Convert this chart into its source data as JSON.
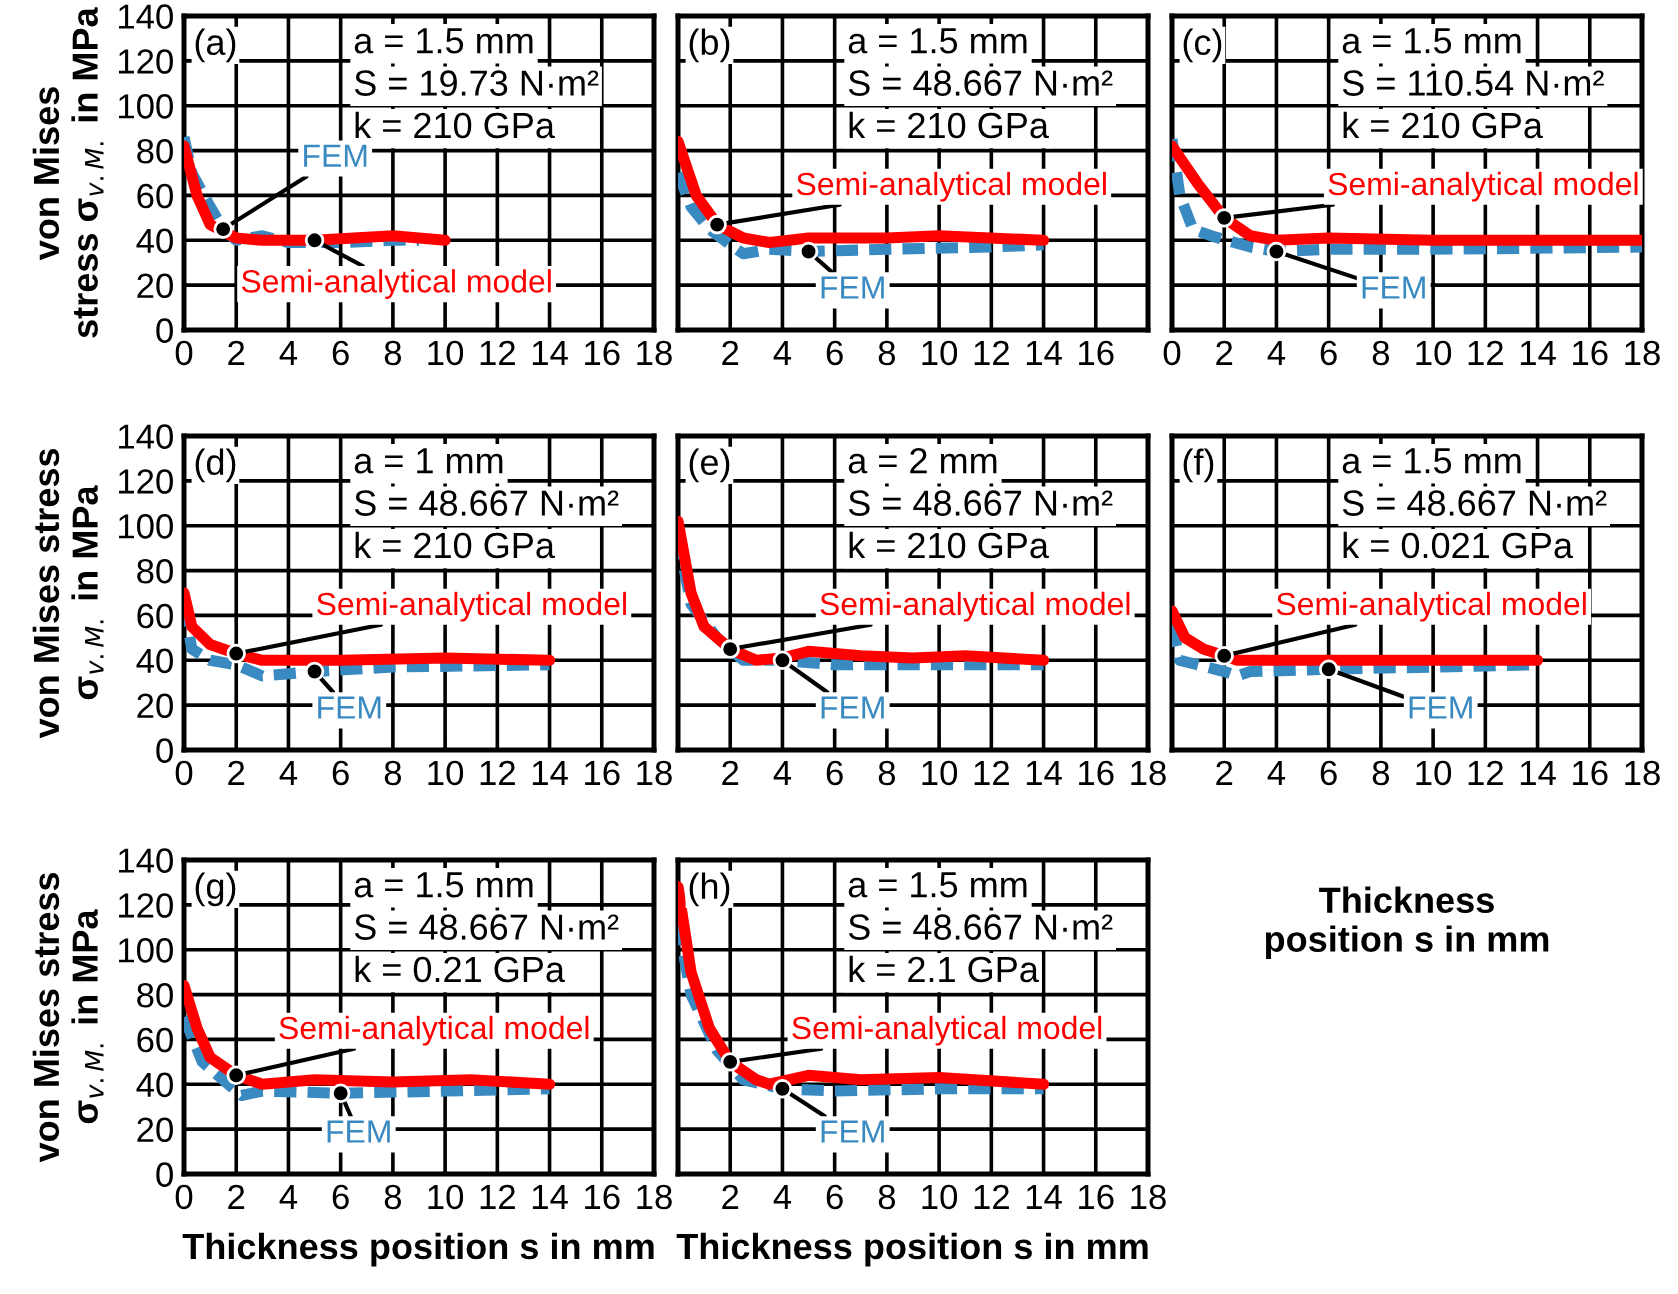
{
  "chart_data": [
    {
      "type": "line",
      "ylabel": "von Mises\nstress σ$_{v.M.}$ in MPa",
      "annotations": [
        "(a)",
        "a = 1.5 mm",
        "S = 19.73 N·m²",
        "k = 210 GPa"
      ],
      "xlim": [
        0,
        18
      ],
      "xticks": [
        0,
        2,
        4,
        6,
        8,
        10,
        12,
        14,
        16,
        18
      ],
      "ylim": [
        0,
        140
      ],
      "yticks": [
        0,
        20,
        40,
        60,
        80,
        100,
        120,
        140
      ],
      "grid": true,
      "series": [
        {
          "name": "FEM",
          "color": "#3a8ac2",
          "line_style": "dashed",
          "x": [
            0,
            0.3,
            1,
            1.5,
            2,
            3,
            4,
            6,
            8,
            9
          ],
          "values": [
            86,
            70,
            55,
            45,
            40,
            42,
            39,
            39,
            40,
            40
          ]
        },
        {
          "name": "Semi-analytical model",
          "color": "#ff0000",
          "line_style": "solid",
          "x": [
            0,
            0.5,
            1,
            2,
            3,
            5,
            8,
            10
          ],
          "values": [
            82,
            60,
            47,
            41,
            40,
            40,
            42,
            40
          ]
        }
      ]
    },
    {
      "type": "line",
      "annotations": [
        "(b)",
        "a = 1.5 mm",
        "S = 48.667 N·m²",
        "k = 210 GPa"
      ],
      "xlim": [
        0,
        18
      ],
      "xticks": [
        2,
        4,
        6,
        8,
        10,
        12,
        14,
        16
      ],
      "ylim": [
        0,
        140
      ],
      "yticks": [
        0,
        20,
        40,
        60,
        80,
        100,
        120,
        140
      ],
      "tick_labels": "x",
      "grid": true,
      "series": [
        {
          "name": "FEM",
          "color": "#3a8ac2",
          "line_style": "dashed",
          "x": [
            0,
            0.5,
            1.2,
            2,
            2.5,
            3.5,
            5,
            8,
            12,
            14
          ],
          "values": [
            70,
            55,
            45,
            38,
            34,
            36,
            35,
            36,
            37,
            38
          ]
        },
        {
          "name": "Semi-analytical model",
          "color": "#ff0000",
          "line_style": "solid",
          "x": [
            0,
            0.7,
            1.5,
            2.5,
            3.5,
            5,
            8,
            10,
            14
          ],
          "values": [
            84,
            60,
            47,
            41,
            39,
            41,
            41,
            42,
            40
          ]
        }
      ]
    },
    {
      "type": "line",
      "annotations": [
        "(c)",
        "a = 1.5 mm",
        "S = 110.54 N·m²",
        "k = 210 GPa"
      ],
      "xlim": [
        0,
        18
      ],
      "xticks": [
        0,
        2,
        4,
        6,
        8,
        10,
        12,
        14,
        16,
        18
      ],
      "ylim": [
        0,
        140
      ],
      "yticks": [
        0,
        20,
        40,
        60,
        80,
        100,
        120,
        140
      ],
      "tick_labels": "x",
      "grid": true,
      "series": [
        {
          "name": "FEM",
          "color": "#3a8ac2",
          "line_style": "dashed",
          "x": [
            0,
            0.3,
            0.8,
            1.5,
            3,
            4,
            6,
            10,
            18
          ],
          "values": [
            85,
            60,
            45,
            42,
            37,
            35,
            36,
            36,
            37
          ]
        },
        {
          "name": "Semi-analytical model",
          "color": "#ff0000",
          "line_style": "solid",
          "x": [
            0,
            1,
            2,
            3,
            4,
            6,
            10,
            18
          ],
          "values": [
            82,
            65,
            50,
            42,
            40,
            41,
            40,
            40
          ]
        }
      ]
    },
    {
      "type": "line",
      "ylabel": "von Mises stress\nσ$_{v.M.}$ in MPa",
      "annotations": [
        "(d)",
        "a = 1 mm",
        "S = 48.667 N·m²",
        "k = 210 GPa"
      ],
      "xlim": [
        0,
        18
      ],
      "xticks": [
        0,
        2,
        4,
        6,
        8,
        10,
        12,
        14,
        16,
        18
      ],
      "ylim": [
        0,
        140
      ],
      "yticks": [
        0,
        20,
        40,
        60,
        80,
        100,
        120,
        140
      ],
      "grid": true,
      "series": [
        {
          "name": "FEM",
          "color": "#3a8ac2",
          "line_style": "dashed",
          "x": [
            0,
            0.3,
            1,
            2,
            3,
            5,
            8,
            14
          ],
          "values": [
            65,
            45,
            40,
            38,
            33,
            35,
            37,
            38
          ]
        },
        {
          "name": "Semi-analytical model",
          "color": "#ff0000",
          "line_style": "solid",
          "x": [
            0,
            0.3,
            1,
            2,
            3,
            6,
            10,
            14
          ],
          "values": [
            70,
            55,
            47,
            43,
            40,
            40,
            41,
            40
          ]
        }
      ]
    },
    {
      "type": "line",
      "annotations": [
        "(e)",
        "a = 2 mm",
        "S = 48.667 N·m²",
        "k = 210 GPa"
      ],
      "xlim": [
        0,
        18
      ],
      "xticks": [
        2,
        4,
        6,
        8,
        10,
        12,
        14,
        16,
        18
      ],
      "ylim": [
        0,
        140
      ],
      "yticks": [
        0,
        20,
        40,
        60,
        80,
        100,
        120,
        140
      ],
      "tick_labels": "x",
      "grid": true,
      "series": [
        {
          "name": "FEM",
          "color": "#3a8ac2",
          "line_style": "dashed",
          "x": [
            0,
            0.5,
            1.5,
            2.5,
            4,
            6,
            10,
            14
          ],
          "values": [
            95,
            65,
            50,
            40,
            40,
            38,
            38,
            38
          ]
        },
        {
          "name": "Semi-analytical model",
          "color": "#ff0000",
          "line_style": "solid",
          "x": [
            0,
            0.5,
            1,
            2,
            3,
            4,
            5,
            7,
            9,
            11,
            14
          ],
          "values": [
            102,
            70,
            55,
            45,
            40,
            41,
            44,
            42,
            41,
            42,
            40
          ]
        }
      ]
    },
    {
      "type": "line",
      "xlabel": "Thickness\nposition s in mm",
      "annotations": [
        "(f)",
        "a = 1.5 mm",
        "S = 48.667 N·m²",
        "k = 0.021 GPa"
      ],
      "xlim": [
        0,
        18
      ],
      "xticks": [
        2,
        4,
        6,
        8,
        10,
        12,
        14,
        16,
        18
      ],
      "ylim": [
        0,
        140
      ],
      "yticks": [
        0,
        20,
        40,
        60,
        80,
        100,
        120,
        140
      ],
      "tick_labels": "x",
      "grid": true,
      "series": [
        {
          "name": "FEM",
          "color": "#3a8ac2",
          "line_style": "dashed",
          "x": [
            0,
            0.3,
            1,
            2,
            2.5,
            3,
            6,
            10,
            14
          ],
          "values": [
            56,
            40,
            38,
            35,
            33,
            35,
            36,
            37,
            38
          ]
        },
        {
          "name": "Semi-analytical model",
          "color": "#ff0000",
          "line_style": "solid",
          "x": [
            0,
            0.5,
            1.2,
            2,
            2.5,
            4,
            14
          ],
          "values": [
            62,
            50,
            45,
            42,
            40,
            40,
            40
          ]
        }
      ]
    },
    {
      "type": "line",
      "xlabel": "Thickness position s in mm",
      "ylabel": "von Mises stress\nσ$_{v.M.}$ in MPa",
      "annotations": [
        "(g)",
        "a = 1.5 mm",
        "S = 48.667 N·m²",
        "k = 0.21 GPa"
      ],
      "xlim": [
        0,
        18
      ],
      "xticks": [
        0,
        2,
        4,
        6,
        8,
        10,
        12,
        14,
        16,
        18
      ],
      "ylim": [
        0,
        140
      ],
      "yticks": [
        0,
        20,
        40,
        60,
        80,
        100,
        120,
        140
      ],
      "grid": true,
      "series": [
        {
          "name": "FEM",
          "color": "#3a8ac2",
          "line_style": "dashed",
          "x": [
            0,
            0.7,
            1.5,
            2.2,
            3,
            6,
            10,
            14
          ],
          "values": [
            70,
            50,
            42,
            35,
            37,
            36,
            37,
            38
          ]
        },
        {
          "name": "Semi-analytical model",
          "color": "#ff0000",
          "line_style": "solid",
          "x": [
            0,
            0.5,
            1,
            2,
            3,
            5,
            8,
            11,
            14
          ],
          "values": [
            84,
            65,
            52,
            44,
            40,
            42,
            41,
            42,
            40
          ]
        }
      ]
    },
    {
      "type": "line",
      "xlabel": "Thickness position s in mm",
      "annotations": [
        "(h)",
        "a = 1.5 mm",
        "S = 48.667 N·m²",
        "k = 2.1 GPa"
      ],
      "xlim": [
        0,
        18
      ],
      "xticks": [
        2,
        4,
        6,
        8,
        10,
        12,
        14,
        16,
        18
      ],
      "ylim": [
        0,
        140
      ],
      "yticks": [
        0,
        20,
        40,
        60,
        80,
        100,
        120,
        140
      ],
      "tick_labels": "x",
      "grid": true,
      "series": [
        {
          "name": "FEM",
          "color": "#3a8ac2",
          "line_style": "dashed",
          "x": [
            0,
            0.5,
            1.5,
            2.5,
            4,
            6,
            10,
            14
          ],
          "values": [
            112,
            80,
            55,
            42,
            38,
            37,
            38,
            38
          ]
        },
        {
          "name": "Semi-analytical model",
          "color": "#ff0000",
          "line_style": "solid",
          "x": [
            0,
            0.5,
            1.2,
            2,
            3,
            3.5,
            5,
            7,
            10,
            14
          ],
          "values": [
            128,
            90,
            65,
            50,
            42,
            40,
            44,
            42,
            43,
            40
          ]
        }
      ]
    }
  ]
}
